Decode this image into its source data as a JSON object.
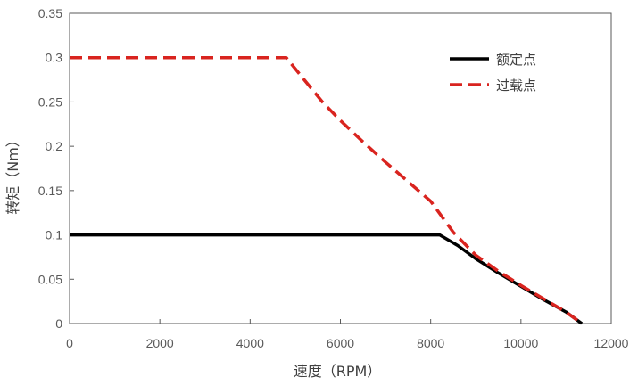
{
  "chart_data": {
    "type": "line",
    "xlabel": "速度（RPM）",
    "ylabel": "转矩（Nm）",
    "xlim": [
      0,
      12000
    ],
    "ylim": [
      0,
      0.35
    ],
    "xticks": [
      0,
      2000,
      4000,
      6000,
      8000,
      10000,
      12000
    ],
    "yticks": [
      0,
      0.05,
      0.1,
      0.15,
      0.2,
      0.25,
      0.3,
      0.35
    ],
    "xtick_labels": [
      "0",
      "2000",
      "4000",
      "6000",
      "8000",
      "10000",
      "12000"
    ],
    "ytick_labels": [
      "0",
      "0.05",
      "0.1",
      "0.15",
      "0.2",
      "0.25",
      "0.3",
      "0.35"
    ],
    "grid": false,
    "legend_position": "top-right",
    "series": [
      {
        "name": "额定点",
        "color": "#000000",
        "style": "solid",
        "x": [
          0,
          8200,
          8600,
          9000,
          9500,
          10000,
          10500,
          11000,
          11350
        ],
        "y": [
          0.1,
          0.1,
          0.088,
          0.073,
          0.057,
          0.042,
          0.027,
          0.013,
          0.0
        ]
      },
      {
        "name": "过载点",
        "color": "#d9241f",
        "style": "dashed",
        "x": [
          0,
          4800,
          5200,
          5600,
          6000,
          6500,
          7000,
          7500,
          8000,
          8500,
          9000,
          9500,
          10000,
          10500,
          11000,
          11350
        ],
        "y": [
          0.3,
          0.3,
          0.275,
          0.25,
          0.229,
          0.205,
          0.182,
          0.16,
          0.138,
          0.103,
          0.077,
          0.059,
          0.043,
          0.028,
          0.013,
          0.0
        ]
      }
    ]
  }
}
